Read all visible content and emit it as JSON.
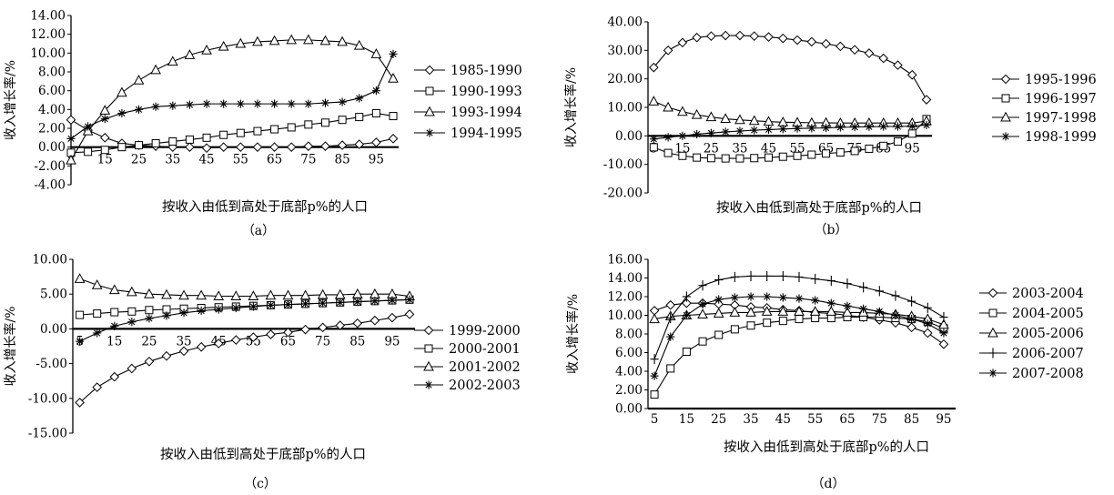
{
  "chart_data": [
    {
      "type": "line",
      "caption": "（a）",
      "xlabel": "按收入由低到高处于底部p%的人口",
      "ylabel": "收入增长率/%",
      "ylim": [
        -4,
        14
      ],
      "y_ticks": [
        "-4.00",
        "-2.00",
        "0.00",
        "2.00",
        "4.00",
        "6.00",
        "8.00",
        "10.00",
        "12.00",
        "14.00"
      ],
      "x_ticks": [
        "5",
        "15",
        "25",
        "35",
        "45",
        "55",
        "65",
        "75",
        "85",
        "95"
      ],
      "x": [
        5,
        10,
        15,
        20,
        25,
        30,
        35,
        40,
        45,
        50,
        55,
        60,
        65,
        70,
        75,
        80,
        85,
        90,
        95,
        100
      ],
      "legend_position": "right",
      "series": [
        {
          "name": "1985-1990",
          "marker": "diamond",
          "values": [
            2.9,
            1.8,
            1.0,
            0.4,
            0.2,
            0.1,
            0.0,
            0.0,
            -0.1,
            0.0,
            0.0,
            0.0,
            0.0,
            0.0,
            0.1,
            0.1,
            0.2,
            0.3,
            0.5,
            0.9
          ]
        },
        {
          "name": "1990-1993",
          "marker": "square",
          "values": [
            -0.6,
            -0.5,
            -0.3,
            0.0,
            0.2,
            0.4,
            0.6,
            0.8,
            1.0,
            1.3,
            1.5,
            1.7,
            1.9,
            2.1,
            2.4,
            2.6,
            2.9,
            3.2,
            3.6,
            3.3
          ]
        },
        {
          "name": "1993-1994",
          "marker": "triangle",
          "values": [
            -1.4,
            1.7,
            3.9,
            5.8,
            7.1,
            8.2,
            9.1,
            9.8,
            10.3,
            10.7,
            11.0,
            11.2,
            11.3,
            11.4,
            11.4,
            11.3,
            11.2,
            10.8,
            9.9,
            7.3
          ]
        },
        {
          "name": "1994-1995",
          "marker": "asterisk",
          "values": [
            0.9,
            2.2,
            3.0,
            3.6,
            4.0,
            4.3,
            4.4,
            4.5,
            4.6,
            4.6,
            4.6,
            4.6,
            4.6,
            4.6,
            4.6,
            4.7,
            4.8,
            5.2,
            6.0,
            9.9
          ]
        }
      ]
    },
    {
      "type": "line",
      "caption": "（b）",
      "xlabel": "按收入由低到高处于底部p%的人口",
      "ylabel": "收入增长率/%",
      "ylim": [
        -20,
        40
      ],
      "y_ticks": [
        "-20.00",
        "-10.00",
        "0.00",
        "10.00",
        "20.00",
        "30.00",
        "40.00"
      ],
      "x_ticks": [
        "5",
        "15",
        "25",
        "35",
        "45",
        "55",
        "65",
        "75",
        "85",
        "95"
      ],
      "x": [
        5,
        10,
        15,
        20,
        25,
        30,
        35,
        40,
        45,
        50,
        55,
        60,
        65,
        70,
        75,
        80,
        85,
        90,
        95,
        100
      ],
      "legend_position": "right",
      "series": [
        {
          "name": "1995-1996",
          "marker": "diamond",
          "values": [
            24.0,
            30.0,
            32.7,
            34.5,
            35.0,
            35.2,
            35.2,
            35.0,
            34.7,
            34.2,
            33.6,
            33.0,
            32.3,
            31.4,
            30.2,
            29.0,
            27.2,
            24.8,
            21.4,
            12.7
          ]
        },
        {
          "name": "1996-1997",
          "marker": "square",
          "values": [
            -4.0,
            -6.0,
            -7.0,
            -7.6,
            -7.8,
            -7.9,
            -7.9,
            -7.8,
            -7.6,
            -7.3,
            -7.0,
            -6.6,
            -6.2,
            -5.8,
            -5.3,
            -4.5,
            -3.5,
            -2.0,
            0.8,
            5.9
          ]
        },
        {
          "name": "1997-1998",
          "marker": "triangle",
          "values": [
            12.1,
            10.0,
            8.5,
            7.4,
            6.6,
            6.0,
            5.6,
            5.3,
            5.0,
            4.8,
            4.7,
            4.6,
            4.6,
            4.5,
            4.5,
            4.5,
            4.5,
            4.5,
            4.5,
            5.2
          ]
        },
        {
          "name": "1998-1999",
          "marker": "asterisk",
          "values": [
            -1.1,
            -0.5,
            0.0,
            0.6,
            1.0,
            1.4,
            1.7,
            2.0,
            2.2,
            2.4,
            2.6,
            2.7,
            2.8,
            3.0,
            3.1,
            3.2,
            3.3,
            3.3,
            3.4,
            3.8
          ]
        }
      ]
    },
    {
      "type": "line",
      "caption": "（c）",
      "xlabel": "按收入由低到高处于底部p%的人口",
      "ylabel": "收入增长率/%",
      "ylim": [
        -15,
        10
      ],
      "y_ticks": [
        "-15.00",
        "-10.00",
        "-5.00",
        "0.00",
        "5.00",
        "10.00"
      ],
      "x_ticks": [
        "5",
        "15",
        "25",
        "35",
        "45",
        "55",
        "65",
        "75",
        "85",
        "95"
      ],
      "x": [
        5,
        10,
        15,
        20,
        25,
        30,
        35,
        40,
        45,
        50,
        55,
        60,
        65,
        70,
        75,
        80,
        85,
        90,
        95,
        100
      ],
      "legend_position": "right",
      "series": [
        {
          "name": "1999-2000",
          "marker": "diamond",
          "values": [
            -10.6,
            -8.4,
            -6.9,
            -5.7,
            -4.7,
            -3.9,
            -3.2,
            -2.6,
            -2.1,
            -1.6,
            -1.2,
            -0.8,
            -0.5,
            -0.1,
            0.2,
            0.5,
            0.8,
            1.2,
            1.6,
            2.1
          ]
        },
        {
          "name": "2000-2001",
          "marker": "square",
          "values": [
            2.0,
            2.2,
            2.4,
            2.5,
            2.7,
            2.8,
            2.9,
            3.0,
            3.1,
            3.2,
            3.3,
            3.4,
            3.5,
            3.6,
            3.7,
            3.8,
            3.9,
            4.0,
            4.1,
            4.2
          ]
        },
        {
          "name": "2001-2002",
          "marker": "triangle",
          "values": [
            7.2,
            6.3,
            5.6,
            5.3,
            5.0,
            4.9,
            4.8,
            4.8,
            4.7,
            4.7,
            4.7,
            4.8,
            4.8,
            4.8,
            4.9,
            4.9,
            5.0,
            5.0,
            5.0,
            4.7
          ]
        },
        {
          "name": "2002-2003",
          "marker": "asterisk",
          "values": [
            -1.8,
            -0.6,
            0.4,
            1.0,
            1.5,
            1.9,
            2.3,
            2.6,
            2.8,
            3.0,
            3.2,
            3.4,
            3.5,
            3.6,
            3.7,
            3.8,
            3.9,
            4.0,
            4.1,
            4.2
          ]
        }
      ]
    },
    {
      "type": "line",
      "caption": "（d）",
      "xlabel": "按收入由低到高处于底部p%的人口",
      "ylabel": "收入增长率/%",
      "ylim": [
        0,
        16
      ],
      "y_ticks": [
        "0.00",
        "2.00",
        "4.00",
        "6.00",
        "8.00",
        "10.00",
        "12.00",
        "14.00",
        "16.00"
      ],
      "x_ticks": [
        "5",
        "15",
        "25",
        "35",
        "45",
        "55",
        "65",
        "75",
        "85",
        "95"
      ],
      "x": [
        5,
        10,
        15,
        20,
        25,
        30,
        35,
        40,
        45,
        50,
        55,
        60,
        65,
        70,
        75,
        80,
        85,
        90,
        95
      ],
      "legend_position": "right",
      "series": [
        {
          "name": "2003-2004",
          "marker": "diamond",
          "values": [
            10.5,
            11.1,
            11.3,
            11.3,
            11.2,
            11.1,
            10.9,
            10.8,
            10.6,
            10.5,
            10.3,
            10.2,
            10.0,
            9.8,
            9.5,
            9.2,
            8.7,
            8.1,
            6.9
          ]
        },
        {
          "name": "2004-2005",
          "marker": "square",
          "values": [
            1.5,
            4.3,
            6.1,
            7.2,
            7.9,
            8.5,
            8.9,
            9.2,
            9.4,
            9.6,
            9.7,
            9.7,
            9.8,
            9.8,
            9.8,
            9.7,
            9.6,
            9.3,
            8.6
          ]
        },
        {
          "name": "2005-2006",
          "marker": "triangle",
          "values": [
            9.6,
            9.9,
            10.0,
            10.1,
            10.2,
            10.3,
            10.3,
            10.4,
            10.4,
            10.4,
            10.4,
            10.4,
            10.3,
            10.3,
            10.2,
            10.1,
            9.9,
            9.6,
            9.0
          ]
        },
        {
          "name": "2006-2007",
          "marker": "plus",
          "values": [
            5.3,
            9.7,
            12.0,
            13.2,
            13.8,
            14.1,
            14.2,
            14.2,
            14.2,
            14.1,
            13.9,
            13.7,
            13.4,
            13.0,
            12.6,
            12.1,
            11.5,
            10.8,
            9.8
          ]
        },
        {
          "name": "2007-2008",
          "marker": "asterisk",
          "values": [
            3.5,
            7.7,
            10.0,
            11.2,
            11.7,
            11.9,
            12.0,
            12.0,
            11.9,
            11.8,
            11.6,
            11.3,
            11.0,
            10.7,
            10.4,
            10.0,
            9.6,
            9.1,
            8.1
          ]
        }
      ]
    }
  ]
}
